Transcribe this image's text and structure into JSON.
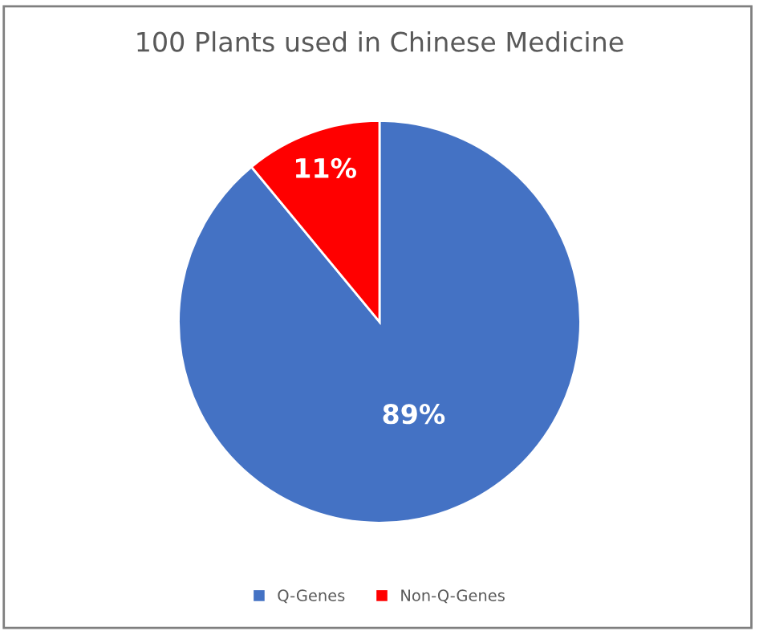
{
  "chart_data": {
    "type": "pie",
    "title": "100 Plants used in Chinese Medicine",
    "categories": [
      "Q-Genes",
      "Non-Q-Genes"
    ],
    "values": [
      89,
      11
    ],
    "colors": [
      "#4472c4",
      "#ff0000"
    ],
    "value_labels": [
      "89%",
      "11%"
    ],
    "legend": "bottom"
  }
}
